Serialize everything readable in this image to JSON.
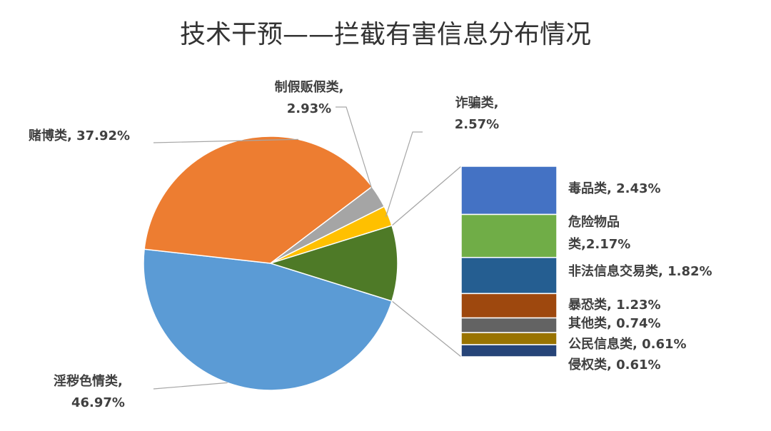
{
  "chart_data": {
    "type": "pie",
    "subtype": "pie-of-bar",
    "title": "技术干预——拦截有害信息分布情况",
    "pie": {
      "slices": [
        {
          "label": "淫秽色情类",
          "value": 46.97,
          "text": "淫秽色情类,",
          "value_text": "46.97%",
          "color": "#5B9BD5"
        },
        {
          "label": "赌博类",
          "value": 37.92,
          "text": "赌博类, 37.92%",
          "color": "#ED7D31"
        },
        {
          "label": "制假贩假类",
          "value": 2.93,
          "text": "制假贩假类,",
          "value_text": "2.93%",
          "color": "#A5A5A5"
        },
        {
          "label": "诈骗类",
          "value": 2.57,
          "text": "诈骗类,",
          "value_text": "2.57%",
          "color": "#FFC000"
        },
        {
          "label": "其他",
          "value": 9.61,
          "text": "",
          "color": "#4E7A27"
        }
      ]
    },
    "bar": {
      "segments": [
        {
          "label": "毒品类",
          "value": 2.43,
          "text": "毒品类, 2.43%",
          "color": "#4472C4"
        },
        {
          "label": "危险物品类",
          "value": 2.17,
          "text": "危险物品",
          "text2": "类,2.17%",
          "color": "#70AD47"
        },
        {
          "label": "非法信息交易类",
          "value": 1.82,
          "text": "非法信息交易类, 1.82%",
          "color": "#255E91"
        },
        {
          "label": "暴恐类",
          "value": 1.23,
          "text": "暴恐类, 1.23%",
          "color": "#9E480E"
        },
        {
          "label": "其他类",
          "value": 0.74,
          "text": "其他类, 0.74%",
          "color": "#636363"
        },
        {
          "label": "公民信息类",
          "value": 0.61,
          "text": "公民信息类, 0.61%",
          "color": "#997300"
        },
        {
          "label": "侵权类",
          "value": 0.61,
          "text": "侵权类, 0.61%",
          "color": "#264478"
        }
      ]
    },
    "legend": "none"
  }
}
